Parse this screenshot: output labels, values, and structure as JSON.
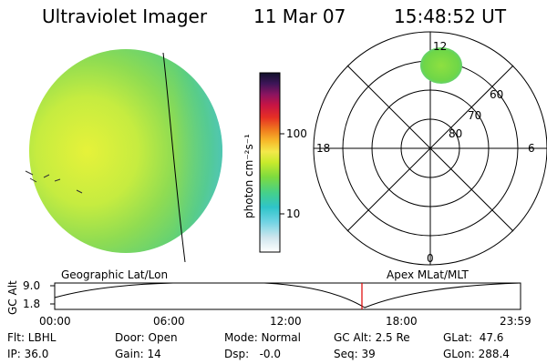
{
  "header": {
    "title": "Ultraviolet Imager",
    "date": "11 Mar 07",
    "time": "15:48:52 UT"
  },
  "colorbar": {
    "unit_label": "photon cm⁻²s⁻¹",
    "ticks": [
      "100",
      "10"
    ]
  },
  "polar_plot": {
    "mlt_labels": [
      "12",
      "18",
      "6",
      "0"
    ],
    "lat_labels": [
      "60",
      "70",
      "80"
    ]
  },
  "timeline": {
    "left_label": "Geographic Lat/Lon",
    "right_label": "Apex MLat/MLT",
    "y_axis_label": "GC Alt",
    "y_ticks": [
      "9.0",
      "1.8"
    ],
    "x_ticks": [
      "00:00",
      "06:00",
      "12:00",
      "18:00",
      "23:59"
    ],
    "marker_color": "#e00000"
  },
  "info": {
    "flt": "Flt: LBHL",
    "ip": "IP: 36.0",
    "door": "Door: Open",
    "gain": "Gain: 14",
    "mode": "Mode: Normal",
    "dsp": "Dsp:   -0.0",
    "gc_alt": "GC Alt: 2.5 Re",
    "seq": "Seq: 39",
    "glat": "GLat:  47.6",
    "glon": "GLon: 288.4"
  }
}
